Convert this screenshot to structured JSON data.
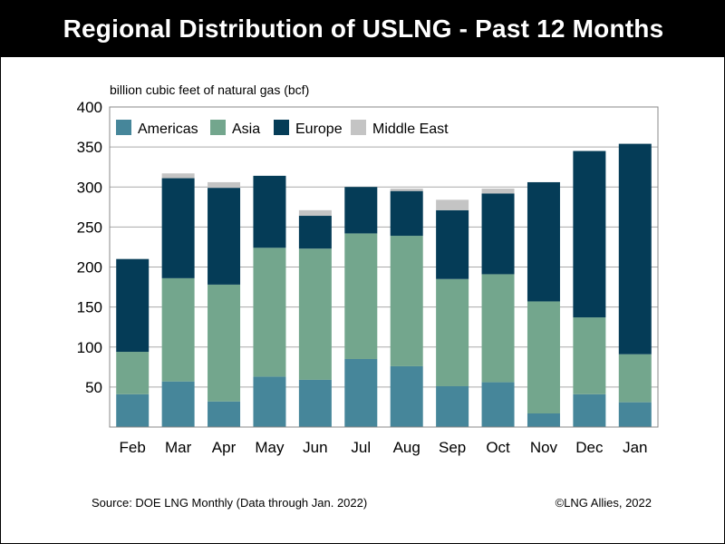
{
  "header": {
    "title": "Regional Distribution of USLNG - Past 12 Months"
  },
  "footer": {
    "source": "Source: DOE LNG Monthly (Data through Jan. 2022)",
    "copyright": "©LNG Allies, 2022"
  },
  "chart_data": {
    "type": "bar",
    "stacked": true,
    "title": "",
    "xlabel": "",
    "ylabel": "billion cubic feet of natural gas (bcf)",
    "ylim": [
      0,
      400
    ],
    "yticks": [
      50,
      100,
      150,
      200,
      250,
      300,
      350,
      400
    ],
    "grid": true,
    "legend_position": "top-left",
    "categories": [
      "Feb",
      "Mar",
      "Apr",
      "May",
      "Jun",
      "Jul",
      "Aug",
      "Sep",
      "Oct",
      "Nov",
      "Dec",
      "Jan"
    ],
    "series": [
      {
        "name": "Americas",
        "color": "#46869a",
        "values": [
          41,
          57,
          32,
          63,
          59,
          85,
          76,
          51,
          56,
          17,
          41,
          31
        ]
      },
      {
        "name": "Asia",
        "color": "#73a68d",
        "values": [
          53,
          129,
          146,
          161,
          164,
          157,
          163,
          134,
          135,
          140,
          96,
          60
        ]
      },
      {
        "name": "Europe",
        "color": "#053c57",
        "values": [
          116,
          125,
          121,
          90,
          41,
          58,
          56,
          86,
          101,
          149,
          208,
          263
        ]
      },
      {
        "name": "Middle East",
        "color": "#c4c4c4",
        "values": [
          0,
          6,
          7,
          0,
          7,
          0,
          3,
          13,
          6,
          0,
          0,
          0
        ]
      }
    ]
  }
}
